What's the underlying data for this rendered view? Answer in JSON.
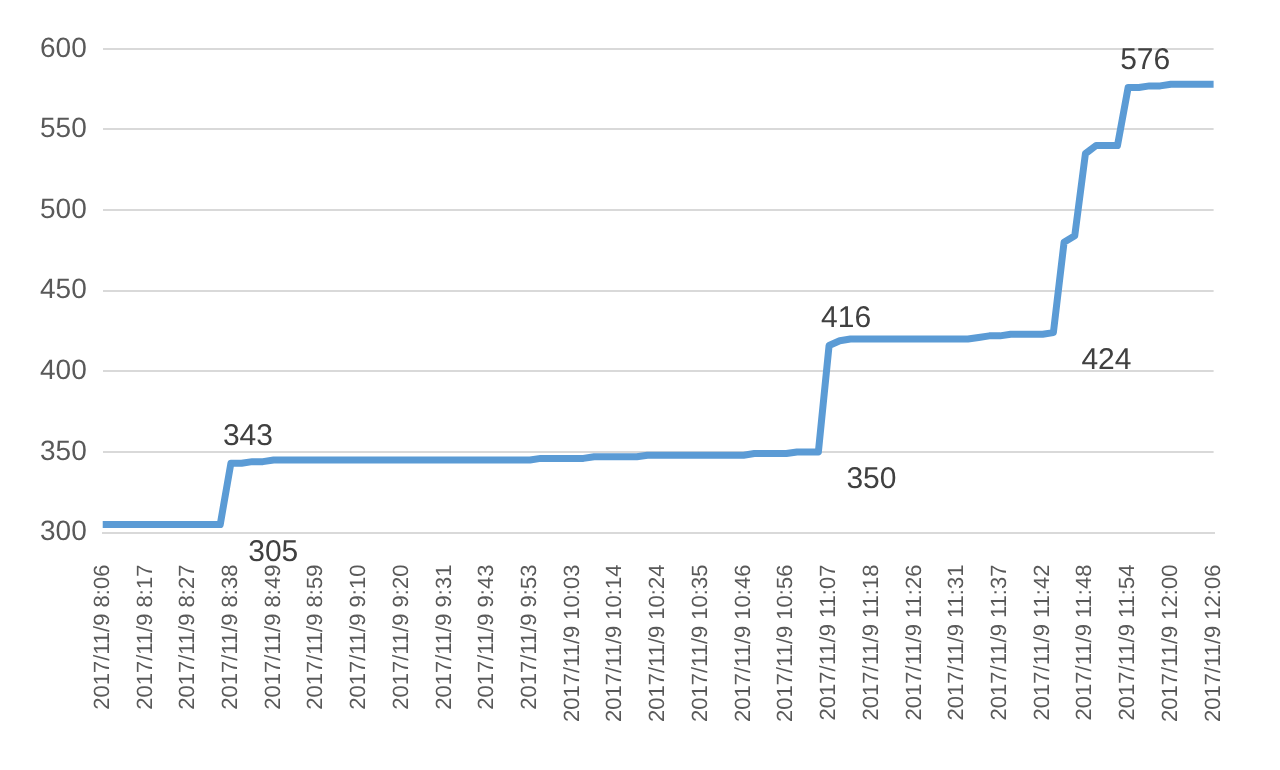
{
  "chart_data": {
    "type": "line",
    "categories": [
      "2017/11/9 8:06",
      null,
      null,
      null,
      "2017/11/9 8:17",
      null,
      null,
      null,
      "2017/11/9 8:27",
      null,
      null,
      null,
      "2017/11/9 8:38",
      null,
      null,
      null,
      "2017/11/9 8:49",
      null,
      null,
      null,
      "2017/11/9 8:59",
      null,
      null,
      null,
      "2017/11/9 9:10",
      null,
      null,
      null,
      "2017/11/9 9:20",
      null,
      null,
      null,
      "2017/11/9 9:31",
      null,
      null,
      null,
      "2017/11/9 9:43",
      null,
      null,
      null,
      "2017/11/9 9:53",
      null,
      null,
      null,
      "2017/11/9 10:03",
      null,
      null,
      null,
      "2017/11/9 10:14",
      null,
      null,
      null,
      "2017/11/9 10:24",
      null,
      null,
      null,
      "2017/11/9 10:35",
      null,
      null,
      null,
      "2017/11/9 10:46",
      null,
      null,
      null,
      "2017/11/9 10:56",
      null,
      null,
      null,
      "2017/11/9 11:07",
      null,
      null,
      null,
      "2017/11/9 11:18",
      null,
      null,
      null,
      "2017/11/9 11:26",
      null,
      null,
      null,
      "2017/11/9 11:31",
      null,
      null,
      null,
      "2017/11/9 11:37",
      null,
      null,
      null,
      "2017/11/9 11:42",
      null,
      null,
      null,
      "2017/11/9 11:48",
      null,
      null,
      null,
      "2017/11/9 11:54",
      null,
      null,
      null,
      "2017/11/9 12:00",
      null,
      null,
      null,
      "2017/11/9 12:06"
    ],
    "series": [
      {
        "color": "#5b9bd5",
        "values": [
          305,
          305,
          305,
          305,
          305,
          305,
          305,
          305,
          305,
          305,
          305,
          305,
          343,
          343,
          344,
          344,
          345,
          345,
          345,
          345,
          345,
          345,
          345,
          345,
          345,
          345,
          345,
          345,
          345,
          345,
          345,
          345,
          345,
          345,
          345,
          345,
          345,
          345,
          345,
          345,
          345,
          346,
          346,
          346,
          346,
          346,
          347,
          347,
          347,
          347,
          347,
          348,
          348,
          348,
          348,
          348,
          348,
          348,
          348,
          348,
          348,
          349,
          349,
          349,
          349,
          350,
          350,
          350,
          416,
          419,
          420,
          420,
          420,
          420,
          420,
          420,
          420,
          420,
          420,
          420,
          420,
          420,
          421,
          422,
          422,
          423,
          423,
          423,
          423,
          424,
          480,
          484,
          535,
          540,
          540,
          540,
          576,
          576,
          577,
          577,
          578,
          578,
          578,
          578,
          578
        ],
        "value_labels": [
          null,
          null,
          null,
          null,
          null,
          null,
          null,
          null,
          null,
          null,
          null,
          "305",
          "343",
          null,
          null,
          null,
          null,
          null,
          null,
          null,
          null,
          null,
          null,
          null,
          null,
          null,
          null,
          null,
          null,
          null,
          null,
          null,
          null,
          null,
          null,
          null,
          null,
          null,
          null,
          null,
          null,
          null,
          null,
          null,
          null,
          null,
          null,
          null,
          null,
          null,
          null,
          null,
          null,
          null,
          null,
          null,
          null,
          null,
          null,
          null,
          null,
          null,
          null,
          null,
          null,
          null,
          null,
          "350",
          "416",
          null,
          null,
          null,
          null,
          null,
          null,
          null,
          null,
          null,
          null,
          null,
          null,
          null,
          null,
          null,
          null,
          null,
          null,
          null,
          null,
          "424",
          null,
          null,
          null,
          null,
          null,
          null,
          "576",
          null,
          null,
          null,
          null,
          null,
          null,
          null,
          null
        ]
      }
    ],
    "ylim": [
      300,
      600
    ],
    "yticks": [
      300,
      350,
      400,
      450,
      500,
      550,
      600
    ],
    "grid": "y",
    "legend": false,
    "marker": "none",
    "line_style": "solid"
  }
}
